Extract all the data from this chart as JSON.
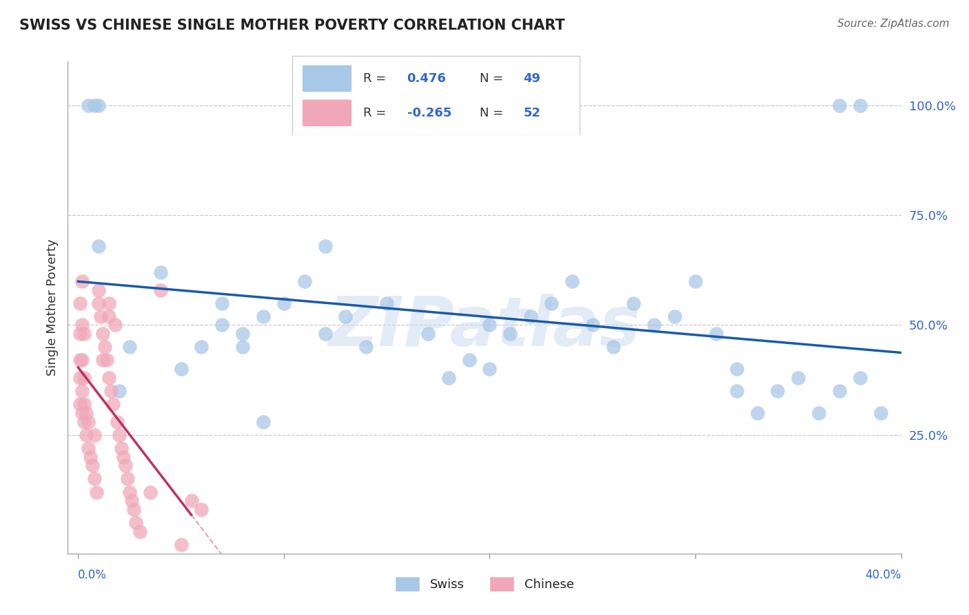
{
  "title": "SWISS VS CHINESE SINGLE MOTHER POVERTY CORRELATION CHART",
  "source": "Source: ZipAtlas.com",
  "ylabel": "Single Mother Poverty",
  "xlim": [
    0.0,
    0.4
  ],
  "ylim": [
    -0.02,
    1.1
  ],
  "yticks": [
    0.0,
    0.25,
    0.5,
    0.75,
    1.0
  ],
  "ytick_labels": [
    "",
    "25.0%",
    "50.0%",
    "75.0%",
    "100.0%"
  ],
  "swiss_R": "0.476",
  "swiss_N": "49",
  "chinese_R": "-0.265",
  "chinese_N": "52",
  "swiss_color": "#a8c8e8",
  "chinese_color": "#f0a8b8",
  "swiss_line_color": "#1a5aaa",
  "chinese_line_color": "#c03060",
  "watermark": "ZIPatlas",
  "swiss_x": [
    0.005,
    0.008,
    0.01,
    0.01,
    0.12,
    0.2,
    0.32,
    0.37,
    0.38,
    0.02,
    0.025,
    0.04,
    0.07,
    0.08,
    0.09,
    0.1,
    0.11,
    0.12,
    0.13,
    0.14,
    0.15,
    0.17,
    0.18,
    0.19,
    0.2,
    0.21,
    0.22,
    0.23,
    0.24,
    0.25,
    0.26,
    0.27,
    0.28,
    0.29,
    0.3,
    0.31,
    0.32,
    0.33,
    0.34,
    0.35,
    0.36,
    0.37,
    0.38,
    0.39,
    0.05,
    0.06,
    0.07,
    0.08,
    0.09
  ],
  "swiss_y": [
    1.0,
    1.0,
    1.0,
    0.68,
    0.68,
    0.4,
    0.4,
    1.0,
    1.0,
    0.35,
    0.45,
    0.62,
    0.5,
    0.45,
    0.52,
    0.55,
    0.6,
    0.48,
    0.52,
    0.45,
    0.55,
    0.48,
    0.38,
    0.42,
    0.5,
    0.48,
    0.52,
    0.55,
    0.6,
    0.5,
    0.45,
    0.55,
    0.5,
    0.52,
    0.6,
    0.48,
    0.35,
    0.3,
    0.35,
    0.38,
    0.3,
    0.35,
    0.38,
    0.3,
    0.4,
    0.45,
    0.55,
    0.48,
    0.28
  ],
  "chinese_x": [
    0.001,
    0.001,
    0.001,
    0.001,
    0.001,
    0.002,
    0.002,
    0.002,
    0.002,
    0.003,
    0.003,
    0.003,
    0.004,
    0.004,
    0.005,
    0.005,
    0.006,
    0.007,
    0.008,
    0.009,
    0.01,
    0.01,
    0.011,
    0.012,
    0.013,
    0.014,
    0.015,
    0.015,
    0.016,
    0.017,
    0.018,
    0.019,
    0.02,
    0.021,
    0.022,
    0.023,
    0.024,
    0.025,
    0.026,
    0.027,
    0.028,
    0.03,
    0.035,
    0.04,
    0.05,
    0.055,
    0.06,
    0.008,
    0.012,
    0.015,
    0.003,
    0.002
  ],
  "chinese_y": [
    0.32,
    0.38,
    0.42,
    0.48,
    0.55,
    0.3,
    0.35,
    0.42,
    0.5,
    0.28,
    0.32,
    0.38,
    0.25,
    0.3,
    0.22,
    0.28,
    0.2,
    0.18,
    0.15,
    0.12,
    0.58,
    0.55,
    0.52,
    0.48,
    0.45,
    0.42,
    0.38,
    0.55,
    0.35,
    0.32,
    0.5,
    0.28,
    0.25,
    0.22,
    0.2,
    0.18,
    0.15,
    0.12,
    0.1,
    0.08,
    0.05,
    0.03,
    0.12,
    0.58,
    0.0,
    0.1,
    0.08,
    0.25,
    0.42,
    0.52,
    0.48,
    0.6
  ]
}
